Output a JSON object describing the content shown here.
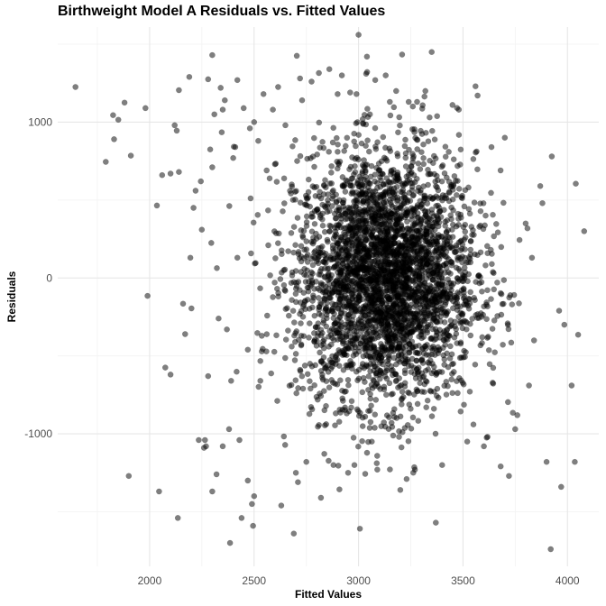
{
  "chart_data": {
    "type": "scatter",
    "title": "Birthweight Model A Residuals vs. Fitted Values",
    "xlabel": "Fitted Values",
    "ylabel": "Residuals",
    "xlim": [
      1560,
      4150
    ],
    "ylim": [
      -1850,
      1610
    ],
    "x_ticks": [
      2000,
      2500,
      3000,
      3500,
      4000
    ],
    "x_tick_labels": [
      "2000",
      "2500",
      "3000",
      "3500",
      "4000"
    ],
    "y_ticks": [
      -1000,
      0,
      1000
    ],
    "y_tick_labels": [
      "-1000",
      "0",
      "1000"
    ],
    "grid": true,
    "point_color": "#000000",
    "point_alpha": 0.5,
    "background": "#ffffff",
    "grid_major_color": "#e6e6e6",
    "grid_minor_color": "#f2f2f2",
    "points": [
      [
        1645,
        1225
      ],
      [
        1790,
        745
      ],
      [
        1825,
        1045
      ],
      [
        1830,
        890
      ],
      [
        1850,
        1015
      ],
      [
        1880,
        1125
      ],
      [
        1900,
        -1270
      ],
      [
        1910,
        785
      ],
      [
        1980,
        1090
      ],
      [
        1990,
        -115
      ],
      [
        2035,
        465
      ],
      [
        2045,
        -1370
      ],
      [
        2060,
        660
      ],
      [
        2075,
        -575
      ],
      [
        2100,
        670
      ],
      [
        2100,
        -620
      ],
      [
        2120,
        980
      ],
      [
        2130,
        945
      ],
      [
        2140,
        1205
      ],
      [
        2140,
        680
      ],
      [
        2135,
        -1540
      ],
      [
        2160,
        -165
      ],
      [
        2170,
        -360
      ],
      [
        2190,
        1290
      ],
      [
        2195,
        130
      ],
      [
        2200,
        -195
      ],
      [
        2210,
        450
      ],
      [
        2220,
        560
      ],
      [
        2235,
        -1040
      ],
      [
        2245,
        620
      ],
      [
        2250,
        310
      ],
      [
        2260,
        -1090
      ],
      [
        2265,
        -1040
      ],
      [
        2270,
        -1080
      ],
      [
        2280,
        1275
      ],
      [
        2280,
        -630
      ],
      [
        2290,
        825
      ],
      [
        2295,
        225
      ],
      [
        2300,
        1430
      ],
      [
        2300,
        710
      ],
      [
        2310,
        1050
      ],
      [
        2320,
        -1260
      ],
      [
        2330,
        -260
      ],
      [
        2340,
        1220
      ],
      [
        2345,
        935
      ],
      [
        2350,
        1080
      ],
      [
        2350,
        -1080
      ],
      [
        2360,
        1140
      ],
      [
        2370,
        -330
      ],
      [
        2380,
        -970
      ],
      [
        2385,
        -1700
      ],
      [
        2390,
        -660
      ],
      [
        2400,
        770
      ],
      [
        2410,
        840
      ],
      [
        2420,
        130
      ],
      [
        2420,
        1270
      ],
      [
        2430,
        -1040
      ],
      [
        2440,
        -1540
      ],
      [
        2450,
        1090
      ],
      [
        2470,
        -460
      ],
      [
        2470,
        -1300
      ],
      [
        2480,
        960
      ],
      [
        2495,
        -1590
      ],
      [
        2500,
        -1400
      ],
      [
        2500,
        1000
      ],
      [
        2520,
        880
      ],
      [
        2530,
        -660
      ],
      [
        2545,
        1180
      ],
      [
        2560,
        690
      ],
      [
        2590,
        1080
      ],
      [
        2600,
        730
      ],
      [
        2615,
        1225
      ],
      [
        2630,
        -1460
      ],
      [
        2650,
        980
      ],
      [
        2680,
        600
      ],
      [
        2690,
        -1640
      ],
      [
        2700,
        -1250
      ],
      [
        2720,
        1280
      ],
      [
        2730,
        1140
      ],
      [
        2750,
        -1180
      ],
      [
        2775,
        1260
      ],
      [
        2810,
        1315
      ],
      [
        2820,
        -1410
      ],
      [
        2860,
        1340
      ],
      [
        2880,
        -1200
      ],
      [
        2900,
        1180
      ],
      [
        2920,
        1300
      ],
      [
        2950,
        -1250
      ],
      [
        2960,
        1190
      ],
      [
        2990,
        1180
      ],
      [
        3000,
        1560
      ],
      [
        3040,
        1420
      ],
      [
        3080,
        1270
      ],
      [
        3090,
        -1230
      ],
      [
        3130,
        1300
      ],
      [
        3150,
        1130
      ],
      [
        3180,
        1200
      ],
      [
        3200,
        -1360
      ],
      [
        3230,
        -1290
      ],
      [
        3240,
        1130
      ],
      [
        3260,
        1100
      ],
      [
        3280,
        1130
      ],
      [
        3320,
        1200
      ],
      [
        3340,
        1030
      ],
      [
        3350,
        1450
      ],
      [
        3370,
        -1570
      ],
      [
        3400,
        -1200
      ],
      [
        3450,
        1110
      ],
      [
        3480,
        1080
      ],
      [
        3520,
        -1050
      ],
      [
        3560,
        1230
      ],
      [
        3570,
        1170
      ],
      [
        3600,
        -1080
      ],
      [
        3680,
        690
      ],
      [
        3700,
        900
      ],
      [
        3720,
        -1270
      ],
      [
        3760,
        -880
      ],
      [
        3830,
        130
      ],
      [
        3870,
        590
      ],
      [
        3880,
        480
      ],
      [
        3900,
        -1180
      ],
      [
        3920,
        -1740
      ],
      [
        3925,
        780
      ],
      [
        3960,
        -210
      ],
      [
        3970,
        -1340
      ],
      [
        3985,
        -300
      ],
      [
        4020,
        -690
      ],
      [
        4035,
        -1180
      ],
      [
        4040,
        605
      ],
      [
        4080,
        300
      ],
      [
        2300,
        -1370
      ],
      [
        2490,
        -1450
      ],
      [
        2710,
        -1310
      ],
      [
        2980,
        -1200
      ],
      [
        3270,
        -1230
      ],
      [
        3550,
        -940
      ],
      [
        3750,
        -970
      ],
      [
        3800,
        350
      ]
    ]
  }
}
